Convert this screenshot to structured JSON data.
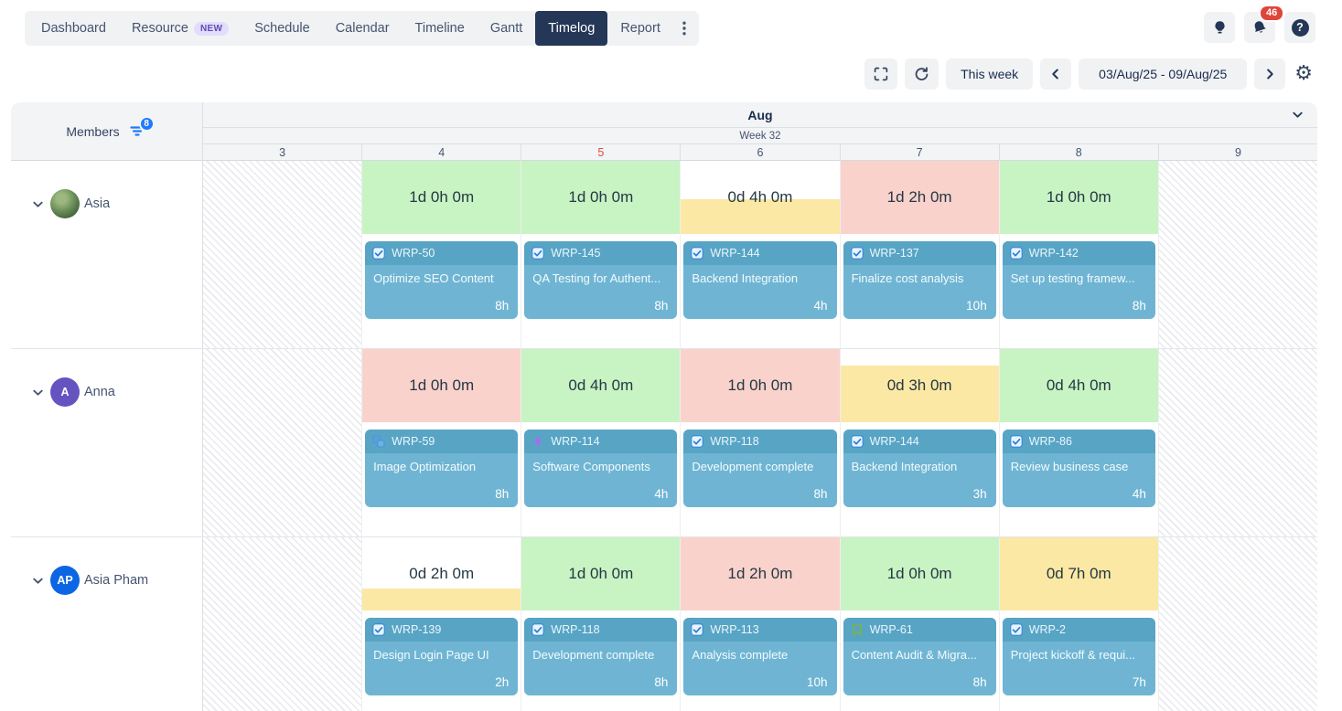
{
  "nav": {
    "items": [
      {
        "label": "Dashboard",
        "active": false
      },
      {
        "label": "Resource",
        "active": false,
        "badge": "NEW"
      },
      {
        "label": "Schedule",
        "active": false
      },
      {
        "label": "Calendar",
        "active": false
      },
      {
        "label": "Timeline",
        "active": false
      },
      {
        "label": "Gantt",
        "active": false
      },
      {
        "label": "Timelog",
        "active": true
      },
      {
        "label": "Report",
        "active": false
      }
    ]
  },
  "header_actions": {
    "notification_count": "46",
    "icons": [
      "lightbulb-icon",
      "bell-icon",
      "help-icon"
    ]
  },
  "toolbar": {
    "this_week_label": "This week",
    "date_range": "03/Aug/25 - 09/Aug/25",
    "icons": [
      "fullscreen-icon",
      "refresh-icon",
      "chevron-left-icon",
      "chevron-right-icon",
      "gear-icon"
    ]
  },
  "members_panel": {
    "title": "Members",
    "filter_count": "8"
  },
  "calendar": {
    "month_label": "Aug",
    "week_label": "Week 32",
    "days": [
      {
        "label": "3",
        "weekend": true,
        "today": false
      },
      {
        "label": "4",
        "weekend": false,
        "today": false
      },
      {
        "label": "5",
        "weekend": false,
        "today": true
      },
      {
        "label": "6",
        "weekend": false,
        "today": false
      },
      {
        "label": "7",
        "weekend": false,
        "today": false
      },
      {
        "label": "8",
        "weekend": false,
        "today": false
      },
      {
        "label": "9",
        "weekend": true,
        "today": false
      }
    ]
  },
  "palette": {
    "green": "#c8f3c3",
    "red": "#f9d2cb",
    "yellow": "#fbe8a4",
    "card_body": "#6fb5d3",
    "card_header": "#58a4c5",
    "accent_blue": "#1d7afc",
    "navy": "#243757",
    "today_red": "#e2483d",
    "notification_red": "#e0453a"
  },
  "members": [
    {
      "name": "Asia",
      "avatar_kind": "photo",
      "initials": "",
      "avatar_color": "",
      "cells": [
        null,
        {
          "summary": "1d 0h 0m",
          "status": "green",
          "fill": 1,
          "task": {
            "icon": "task",
            "key": "WRP-50",
            "title": "Optimize SEO Content",
            "hours": "8h"
          }
        },
        {
          "summary": "1d 0h 0m",
          "status": "green",
          "fill": 1,
          "task": {
            "icon": "task",
            "key": "WRP-145",
            "title": "QA Testing for Authent...",
            "hours": "8h"
          }
        },
        {
          "summary": "0d 4h 0m",
          "status": "yellow",
          "fill": 0.48,
          "task": {
            "icon": "task",
            "key": "WRP-144",
            "title": "Backend Integration",
            "hours": "4h"
          }
        },
        {
          "summary": "1d 2h 0m",
          "status": "red",
          "fill": 1,
          "task": {
            "icon": "task",
            "key": "WRP-137",
            "title": "Finalize cost analysis",
            "hours": "10h"
          }
        },
        {
          "summary": "1d 0h 0m",
          "status": "green",
          "fill": 1,
          "task": {
            "icon": "task",
            "key": "WRP-142",
            "title": "Set up testing framew...",
            "hours": "8h"
          }
        },
        null
      ]
    },
    {
      "name": "Anna",
      "avatar_kind": "initials",
      "initials": "A",
      "avatar_color": "#6554c0",
      "cells": [
        null,
        {
          "summary": "1d 0h 0m",
          "status": "red",
          "fill": 1,
          "task": {
            "icon": "subtask",
            "key": "WRP-59",
            "title": "Image Optimization",
            "hours": "8h"
          }
        },
        {
          "summary": "0d 4h 0m",
          "status": "green",
          "fill": 1,
          "task": {
            "icon": "epic",
            "key": "WRP-114",
            "title": "Software Components",
            "hours": "4h"
          }
        },
        {
          "summary": "1d 0h 0m",
          "status": "red",
          "fill": 1,
          "task": {
            "icon": "task",
            "key": "WRP-118",
            "title": "Development complete",
            "hours": "8h"
          }
        },
        {
          "summary": "0d 3h 0m",
          "status": "yellow",
          "fill": 0.77,
          "task": {
            "icon": "task",
            "key": "WRP-144",
            "title": "Backend Integration",
            "hours": "3h"
          }
        },
        {
          "summary": "0d 4h 0m",
          "status": "green",
          "fill": 1,
          "task": {
            "icon": "task",
            "key": "WRP-86",
            "title": "Review business case",
            "hours": "4h"
          }
        },
        null
      ]
    },
    {
      "name": "Asia Pham",
      "avatar_kind": "initials",
      "initials": "AP",
      "avatar_color": "#0c66e4",
      "cells": [
        null,
        {
          "summary": "0d 2h 0m",
          "status": "yellow",
          "fill": 0.3,
          "task": {
            "icon": "task",
            "key": "WRP-139",
            "title": "Design Login Page UI",
            "hours": "2h"
          }
        },
        {
          "summary": "1d 0h 0m",
          "status": "green",
          "fill": 1,
          "task": {
            "icon": "task",
            "key": "WRP-118",
            "title": "Development complete",
            "hours": "8h"
          }
        },
        {
          "summary": "1d 2h 0m",
          "status": "red",
          "fill": 1,
          "task": {
            "icon": "task",
            "key": "WRP-113",
            "title": "Analysis complete",
            "hours": "10h"
          }
        },
        {
          "summary": "1d 0h 0m",
          "status": "green",
          "fill": 1,
          "task": {
            "icon": "story",
            "key": "WRP-61",
            "title": "Content Audit & Migra...",
            "hours": "8h"
          }
        },
        {
          "summary": "0d 7h 0m",
          "status": "yellow",
          "fill": 1,
          "task": {
            "icon": "task",
            "key": "WRP-2",
            "title": "Project kickoff & requi...",
            "hours": "7h"
          }
        },
        null
      ]
    }
  ]
}
